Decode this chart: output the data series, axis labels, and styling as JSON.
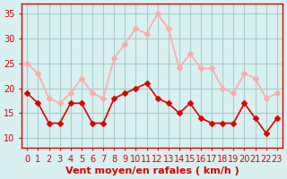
{
  "x": [
    0,
    1,
    2,
    3,
    4,
    5,
    6,
    7,
    8,
    9,
    10,
    11,
    12,
    13,
    14,
    15,
    16,
    17,
    18,
    19,
    20,
    21,
    22,
    23
  ],
  "wind_avg": [
    19,
    17,
    13,
    13,
    17,
    17,
    13,
    13,
    18,
    19,
    20,
    21,
    18,
    17,
    15,
    17,
    14,
    13,
    13,
    13,
    17,
    14,
    11,
    14
  ],
  "wind_gust": [
    25,
    23,
    18,
    17,
    19,
    22,
    19,
    18,
    26,
    29,
    32,
    31,
    35,
    32,
    24,
    27,
    24,
    24,
    20,
    19,
    23,
    22,
    18,
    19
  ],
  "avg_color": "#dd0000",
  "gust_color": "#ffaaaa",
  "bg_color": "#d8f0f0",
  "grid_color": "#aacccc",
  "xlabel": "Vent moyen/en rafales ( km/h )",
  "ylim": [
    8,
    37
  ],
  "yticks": [
    10,
    15,
    20,
    25,
    30,
    35
  ],
  "xticks": [
    0,
    1,
    2,
    3,
    4,
    5,
    6,
    7,
    8,
    9,
    10,
    11,
    12,
    13,
    14,
    15,
    16,
    17,
    18,
    19,
    20,
    21,
    22,
    23
  ],
  "tick_fontsize": 7,
  "label_fontsize": 8
}
